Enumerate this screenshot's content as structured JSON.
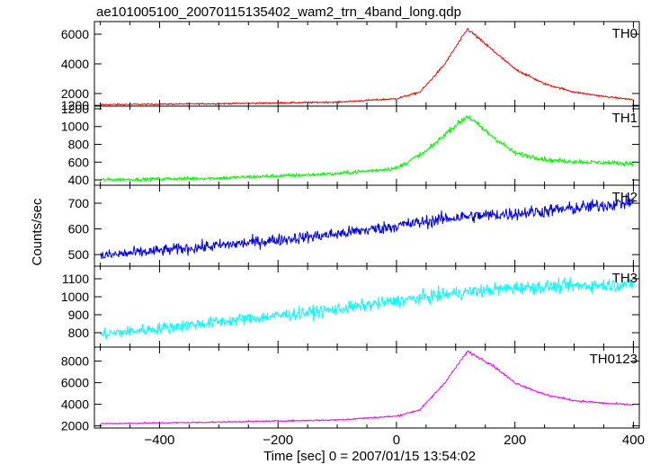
{
  "chart_data": {
    "type": "line",
    "title": "ae101005100_20070115135402_wam2_trn_4band_long.qdp",
    "xlabel": "Time [sec] 0 = 2007/01/15 13:54:02",
    "ylabel": "Counts/sec",
    "xlim": [
      -510,
      410
    ],
    "x_ticks": [
      -400,
      -200,
      0,
      200,
      400
    ],
    "x_tick_labels": [
      "−400",
      "−200",
      "0",
      "200",
      "400"
    ],
    "x_range": [
      -500,
      400
    ],
    "grid": false,
    "panels": [
      {
        "name": "TH0",
        "color": "#ff0000",
        "ylim": [
          1150,
          6850
        ],
        "y_ticks": [
          1200,
          2000,
          4000,
          6000
        ],
        "noise": 45,
        "curve": [
          [
            -500,
            1250
          ],
          [
            -300,
            1310
          ],
          [
            -100,
            1420
          ],
          [
            0,
            1650
          ],
          [
            40,
            2100
          ],
          [
            80,
            3900
          ],
          [
            120,
            6350
          ],
          [
            160,
            5000
          ],
          [
            200,
            3650
          ],
          [
            250,
            2650
          ],
          [
            300,
            2100
          ],
          [
            350,
            1800
          ],
          [
            400,
            1580
          ]
        ]
      },
      {
        "name": "TH1",
        "color": "#00ff00",
        "ylim": [
          340,
          1230
        ],
        "y_ticks": [
          400,
          600,
          800,
          1000,
          1200
        ],
        "noise": 20,
        "curve": [
          [
            -500,
            400
          ],
          [
            -300,
            420
          ],
          [
            -100,
            470
          ],
          [
            0,
            530
          ],
          [
            50,
            720
          ],
          [
            90,
            960
          ],
          [
            120,
            1120
          ],
          [
            150,
            950
          ],
          [
            200,
            700
          ],
          [
            260,
            620
          ],
          [
            320,
            600
          ],
          [
            400,
            585
          ]
        ]
      },
      {
        "name": "TH2",
        "color": "#0000ff",
        "ylim": [
          455,
          770
        ],
        "y_ticks": [
          500,
          600,
          700
        ],
        "noise": 22,
        "curve": [
          [
            -500,
            495
          ],
          [
            -300,
            535
          ],
          [
            -100,
            580
          ],
          [
            0,
            612
          ],
          [
            100,
            645
          ],
          [
            200,
            660
          ],
          [
            300,
            680
          ],
          [
            400,
            705
          ]
        ]
      },
      {
        "name": "TH3",
        "color": "#00ffff",
        "ylim": [
          720,
          1170
        ],
        "y_ticks": [
          800,
          900,
          1000,
          1100
        ],
        "noise": 32,
        "curve": [
          [
            -500,
            790
          ],
          [
            -300,
            860
          ],
          [
            -100,
            930
          ],
          [
            0,
            975
          ],
          [
            100,
            1020
          ],
          [
            200,
            1050
          ],
          [
            300,
            1060
          ],
          [
            400,
            1070
          ]
        ]
      },
      {
        "name": "TH0123",
        "color": "#ff00ff",
        "ylim": [
          1800,
          9300
        ],
        "y_ticks": [
          2000,
          4000,
          6000,
          8000
        ],
        "noise": 60,
        "curve": [
          [
            -500,
            2200
          ],
          [
            -300,
            2350
          ],
          [
            -100,
            2550
          ],
          [
            0,
            2900
          ],
          [
            40,
            3500
          ],
          [
            80,
            5900
          ],
          [
            120,
            8900
          ],
          [
            160,
            7700
          ],
          [
            200,
            6000
          ],
          [
            250,
            4900
          ],
          [
            300,
            4350
          ],
          [
            350,
            4100
          ],
          [
            400,
            3950
          ]
        ]
      }
    ]
  }
}
